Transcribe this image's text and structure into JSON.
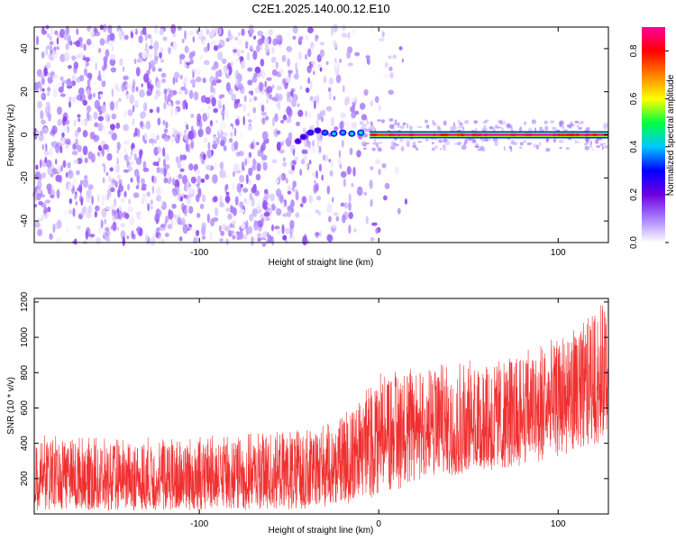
{
  "title": "C2E1.2025.140.00.12.E10",
  "chart_data": [
    {
      "type": "heatmap",
      "xlabel": "Height of straight line (km)",
      "ylabel": "Frequency (Hz)",
      "xlim": [
        -192,
        128
      ],
      "ylim": [
        -50,
        50
      ],
      "xticks": [
        -100,
        0,
        100
      ],
      "yticks": [
        -40,
        -20,
        0,
        20,
        40
      ],
      "grid": false,
      "colorbar": {
        "label": "Normalized spectral amplitude",
        "range": [
          0.0,
          0.9
        ],
        "ticks": [
          "0.0",
          "0.2",
          "0.4",
          "0.6",
          "0.8"
        ],
        "colors": [
          "#ffffff",
          "#a880ff",
          "#7000e0",
          "#0000ff",
          "#00c8ff",
          "#00ff40",
          "#ffff00",
          "#ff8000",
          "#ff0000",
          "#ff00a0"
        ]
      },
      "noise_region": {
        "x": [
          -192,
          -5
        ],
        "fade_start": -60,
        "amplitude_range": [
          0.0,
          0.15
        ]
      },
      "signal": {
        "onset_x": -45,
        "points": [
          {
            "x": -45,
            "y": -3,
            "amp": 0.25
          },
          {
            "x": -42,
            "y": -1,
            "amp": 0.28
          },
          {
            "x": -38,
            "y": 1,
            "amp": 0.32
          },
          {
            "x": -34,
            "y": 2,
            "amp": 0.3
          },
          {
            "x": -30,
            "y": 1,
            "amp": 0.35
          },
          {
            "x": -25,
            "y": 0.5,
            "amp": 0.4
          },
          {
            "x": -20,
            "y": 1,
            "amp": 0.38
          },
          {
            "x": -15,
            "y": 0.5,
            "amp": 0.42
          },
          {
            "x": -10,
            "y": 1,
            "amp": 0.45
          }
        ],
        "line": {
          "x": [
            -5,
            128
          ],
          "y": 0,
          "amp": 0.9
        }
      }
    },
    {
      "type": "line",
      "xlabel": "Height of straight line (km)",
      "ylabel": "SNR (10 * v/v)",
      "xlim": [
        -192,
        128
      ],
      "ylim": [
        0,
        1220
      ],
      "xticks": [
        -100,
        0,
        100
      ],
      "yticks": [
        200,
        400,
        600,
        800,
        1000,
        1200
      ],
      "grid": false,
      "color": "#f03030",
      "envelope": [
        {
          "x": -192,
          "low": 20,
          "mid": 190,
          "high": 450
        },
        {
          "x": -150,
          "low": 20,
          "mid": 180,
          "high": 430
        },
        {
          "x": -100,
          "low": 20,
          "mid": 190,
          "high": 440
        },
        {
          "x": -50,
          "low": 25,
          "mid": 210,
          "high": 470
        },
        {
          "x": -25,
          "low": 40,
          "mid": 260,
          "high": 520
        },
        {
          "x": 0,
          "low": 90,
          "mid": 430,
          "high": 800
        },
        {
          "x": 25,
          "low": 200,
          "mid": 480,
          "high": 880
        },
        {
          "x": 50,
          "low": 220,
          "mid": 470,
          "high": 870
        },
        {
          "x": 75,
          "low": 260,
          "mid": 520,
          "high": 930
        },
        {
          "x": 100,
          "low": 320,
          "mid": 590,
          "high": 1000
        },
        {
          "x": 128,
          "low": 420,
          "mid": 760,
          "high": 1220
        }
      ]
    }
  ]
}
